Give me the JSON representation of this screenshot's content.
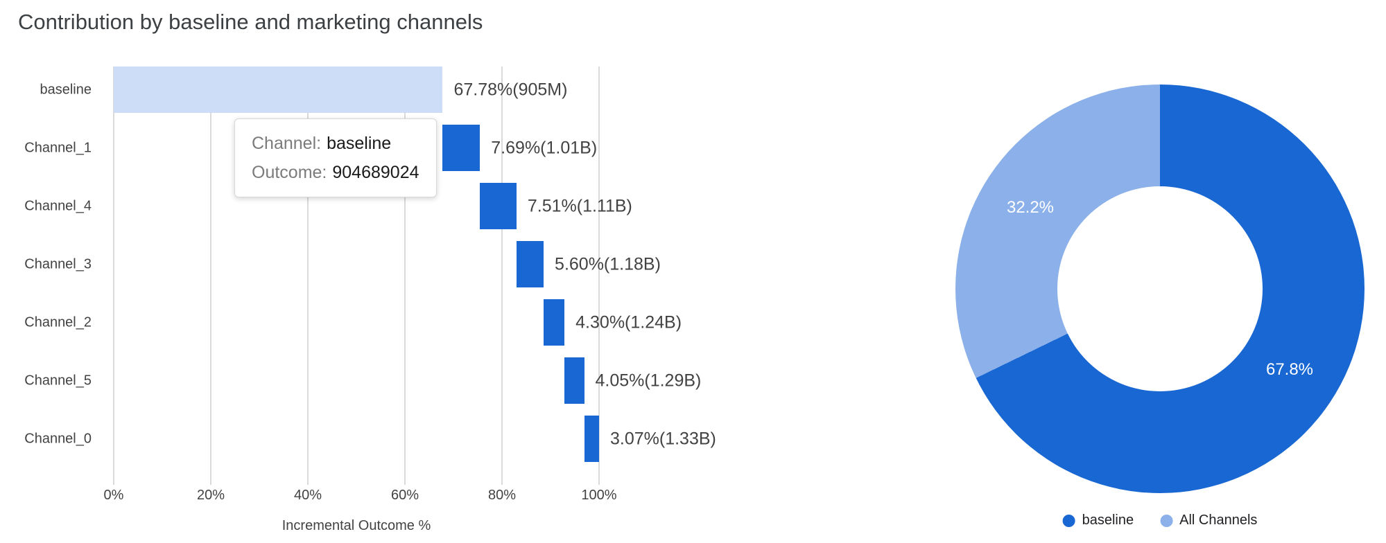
{
  "page": {
    "title": "Contribution by baseline and marketing channels"
  },
  "tooltip": {
    "channel_label": "Channel:",
    "channel_value": "baseline",
    "outcome_label": "Outcome:",
    "outcome_value": "904689024"
  },
  "chart_data": [
    {
      "type": "bar",
      "subtype": "horizontal-waterfall",
      "title": "Contribution by baseline and marketing channels",
      "xlabel": "Incremental Outcome %",
      "xlim": [
        0,
        100
      ],
      "grid": true,
      "x_ticks": [
        "0%",
        "20%",
        "40%",
        "60%",
        "80%",
        "100%"
      ],
      "x_tick_values": [
        0,
        20,
        40,
        60,
        80,
        100
      ],
      "categories": [
        "baseline",
        "Channel_1",
        "Channel_4",
        "Channel_3",
        "Channel_2",
        "Channel_5",
        "Channel_0"
      ],
      "values_pct": [
        67.78,
        7.69,
        7.51,
        5.6,
        4.3,
        4.05,
        3.07
      ],
      "start_pct": [
        0,
        67.78,
        75.47,
        82.98,
        88.58,
        92.88,
        96.93
      ],
      "bar_labels": [
        "67.78%(905M)",
        "7.69%(1.01B)",
        "7.51%(1.11B)",
        "5.60%(1.18B)",
        "4.30%(1.24B)",
        "4.05%(1.29B)",
        "3.07%(1.33B)"
      ],
      "bar_colors": [
        "#cdddf7",
        "#1967d2",
        "#1967d2",
        "#1967d2",
        "#1967d2",
        "#1967d2",
        "#1967d2"
      ]
    },
    {
      "type": "pie",
      "subtype": "donut",
      "legend_position": "bottom",
      "slices": [
        {
          "label": "baseline",
          "value_pct": 67.8,
          "slice_label": "67.8%",
          "color": "#1967d2"
        },
        {
          "label": "All Channels",
          "value_pct": 32.2,
          "slice_label": "32.2%",
          "color": "#8cb1ea"
        }
      ]
    }
  ]
}
